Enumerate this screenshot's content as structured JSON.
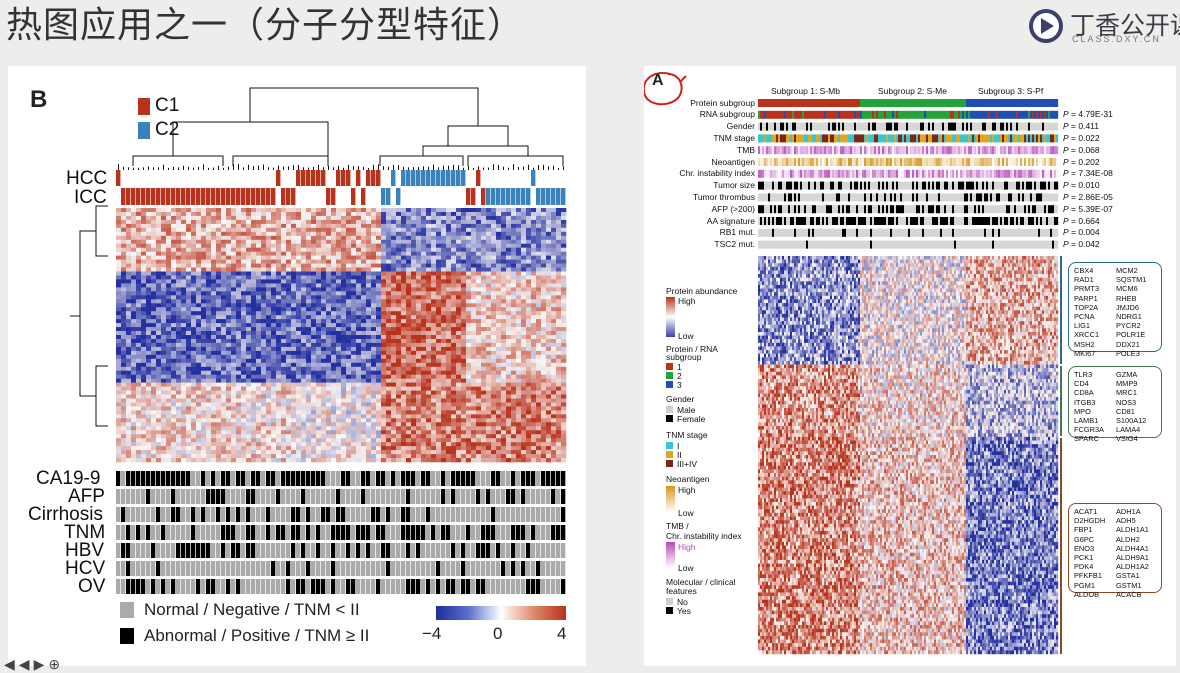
{
  "slide": {
    "title": "热图应用之一（分子分型特征）",
    "brand": {
      "name": "丁香公开课",
      "sub": "CLASS.DXY.CN"
    }
  },
  "panel_b": {
    "label": "B",
    "legend_groups": [
      {
        "name": "C1",
        "color": "#b8321c"
      },
      {
        "name": "C2",
        "color": "#3a82bd"
      }
    ],
    "top_tracks": [
      "HCC",
      "ICC"
    ],
    "clinical_tracks": [
      "CA19-9",
      "AFP",
      "Cirrhosis",
      "TNM",
      "HBV",
      "HCV",
      "OV"
    ],
    "binary_legend": [
      {
        "label": "Normal / Negative / TNM < II",
        "color": "#aaaaaa"
      },
      {
        "label": "Abnormal / Positive / TNM ≥ II",
        "color": "#000000"
      }
    ],
    "colorbar": {
      "min": "−4",
      "mid": "0",
      "max": "4",
      "low_color": "#1f2d9e",
      "high_color": "#b8321c"
    }
  },
  "panel_a": {
    "label": "A",
    "subgroups": [
      "Subgroup 1: S-Mb",
      "Subgroup 2: S-Me",
      "Subgroup 3: S-Pf"
    ],
    "subgroup_colors": [
      "#b8321c",
      "#23a33a",
      "#1f4fb2"
    ],
    "tracks": [
      {
        "name": "Protein subgroup",
        "p": ""
      },
      {
        "name": "RNA subgroup",
        "p": "4.79E-31"
      },
      {
        "name": "Gender",
        "p": "0.411"
      },
      {
        "name": "TNM stage",
        "p": "0.022"
      },
      {
        "name": "TMB",
        "p": "0.068"
      },
      {
        "name": "Neoantigen",
        "p": "0.202"
      },
      {
        "name": "Chr. instability index",
        "p": "7.34E-08"
      },
      {
        "name": "Tumor size",
        "p": "0.010"
      },
      {
        "name": "Tumor thrombus",
        "p": "2.86E-05"
      },
      {
        "name": "AFP (>200)",
        "p": "5.39E-07"
      },
      {
        "name": "AA signature",
        "p": "0.664"
      },
      {
        "name": "RB1 mut.",
        "p": "0.004"
      },
      {
        "name": "TSC2 mut.",
        "p": "0.042"
      }
    ],
    "p_prefix": "P =",
    "legend": {
      "protein_abundance": "Protein abundance",
      "high": "High",
      "low": "Low",
      "subgroup_title": [
        "Protein / RNA",
        "subgroup"
      ],
      "subgroup_items": [
        "1",
        "2",
        "3"
      ],
      "gender_title": "Gender",
      "gender_items": [
        "Male",
        "Female"
      ],
      "tnm_title": "TNM stage",
      "tnm_items": [
        "I",
        "II",
        "III+IV"
      ],
      "tnm_colors": [
        "#35c6d4",
        "#e0a820",
        "#7a2a14"
      ],
      "neo_title": "Neoantigen",
      "tmb_title": [
        "TMB /",
        "Chr. instability index"
      ],
      "mol_title": [
        "Molecular / clinical",
        "features"
      ],
      "mol_items": [
        "No",
        "Yes"
      ]
    },
    "gene_boxes": [
      {
        "color": "#2b6a8f",
        "left": [
          "CBX4",
          "RAD1",
          "PRMT3",
          "PARP1",
          "TOP2A",
          "PCNA",
          "LIG1",
          "XRCC1",
          "MSH2",
          "MKI67"
        ],
        "right": [
          "MCM2",
          "SQSTM1",
          "MCM6",
          "RHEB",
          "JMJD6",
          "NDRG1",
          "PYCR2",
          "POLR1E",
          "DDX21",
          "POLE3"
        ]
      },
      {
        "color": "#3f7a4a",
        "left": [
          "TLR3",
          "CD4",
          "CD8A",
          "ITGB3",
          "MPO",
          "LAMB1",
          "FCGR3A",
          "SPARC"
        ],
        "right": [
          "GZMA",
          "MMP9",
          "MRC1",
          "NOS3",
          "CD81",
          "S100A12",
          "LAMA4",
          "VSIG4"
        ]
      },
      {
        "color": "#8a4a22",
        "left": [
          "ACAT1",
          "D2HGDH",
          "FBP1",
          "G6PC",
          "ENO3",
          "PCK1",
          "PDK4",
          "PFKFB1",
          "PGM1",
          "ALDOB"
        ],
        "right": [
          "ADH1A",
          "ADH5",
          "ALDH1A1",
          "ALDH2",
          "ALDH4A1",
          "ALDH9A1",
          "ALDH1A2",
          "GSTA1",
          "GSTM1",
          "ACACB"
        ]
      }
    ]
  }
}
